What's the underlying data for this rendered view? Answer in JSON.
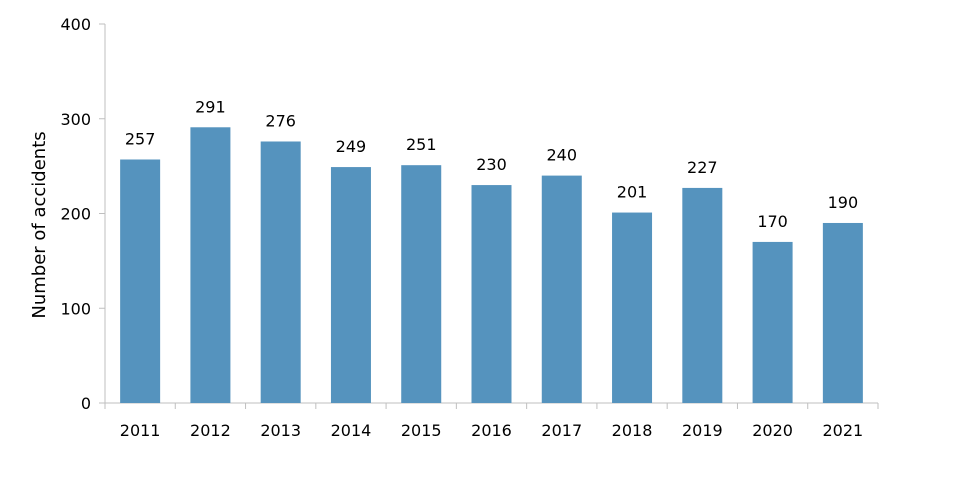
{
  "chart_data": {
    "type": "bar",
    "title": "",
    "xlabel": "",
    "ylabel": "Number of accidents",
    "categories": [
      "2011",
      "2012",
      "2013",
      "2014",
      "2015",
      "2016",
      "2017",
      "2018",
      "2019",
      "2020",
      "2021"
    ],
    "series": [
      {
        "values": [
          257,
          291,
          276,
          249,
          251,
          230,
          240,
          201,
          227,
          170,
          190
        ],
        "color": "#5593BE"
      }
    ],
    "ylim": [
      0,
      400
    ],
    "yticks": [
      0,
      100,
      200,
      300,
      400
    ],
    "grid": false,
    "legend": "none",
    "data_labels": true
  }
}
